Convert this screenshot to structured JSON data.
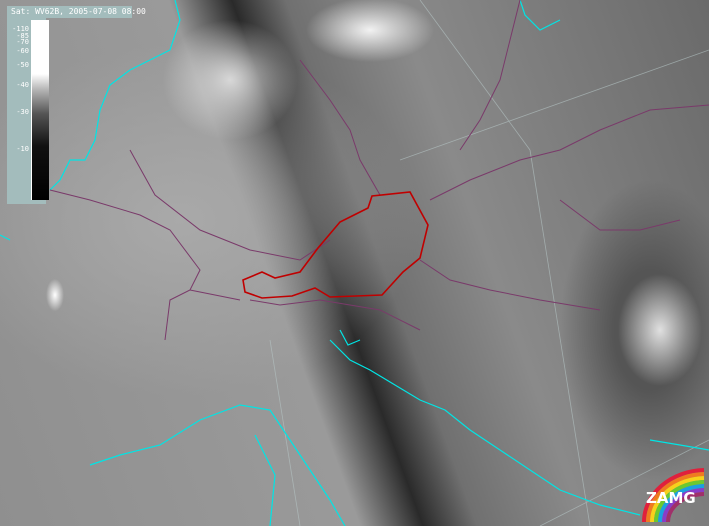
{
  "header": {
    "title": "Sat: WV62B, 2005-07-08 08:00"
  },
  "legend": {
    "ticks": [
      "-110",
      "-85",
      "-70",
      "-60",
      "-50",
      "-40",
      "-30",
      "-10"
    ]
  },
  "logo": {
    "text": "ZAMG"
  },
  "colors": {
    "coastline": "#00e5e5",
    "borders": "#7a3a6a",
    "highlight_country": "#c00000",
    "legend_bg": "#a3bcbc",
    "grid": "#b8c8c8"
  }
}
